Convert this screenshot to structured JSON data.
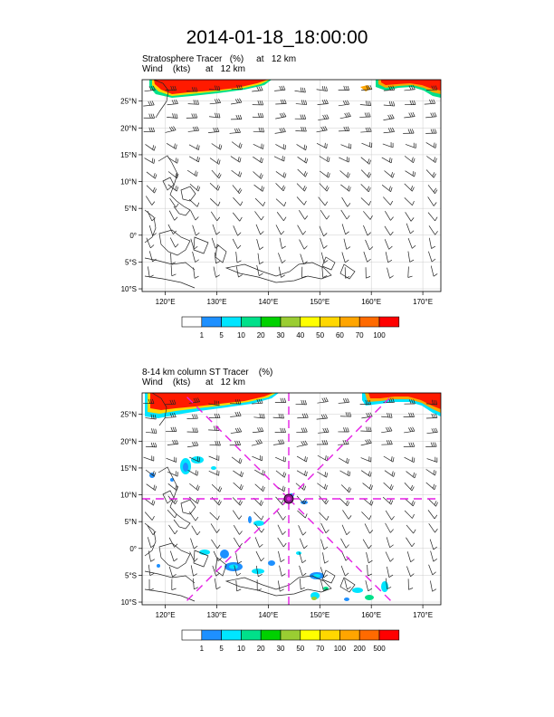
{
  "title": "2014-01-18_18:00:00",
  "panels": [
    {
      "line1": "Stratosphere Tracer   (%)     at   12 km",
      "line2": "Wind    (kts)      at   12 km",
      "lat_labels": [
        "25°N",
        "20°N",
        "15°N",
        "10°N",
        "5°N",
        "0°",
        "5°S",
        "10°S"
      ],
      "lon_labels": [
        "120°E",
        "130°E",
        "140°E",
        "150°E",
        "160°E",
        "170°E"
      ],
      "colorbar_labels": [
        "1",
        "5",
        "10",
        "20",
        "30",
        "40",
        "50",
        "60",
        "70",
        "100"
      ]
    },
    {
      "line1": "8-14 km column ST Tracer    (%)",
      "line2": "Wind    (kts)      at   12 km",
      "lat_labels": [
        "25°N",
        "20°N",
        "15°N",
        "10°N",
        "5°N",
        "0°",
        "5°S",
        "10°S"
      ],
      "lon_labels": [
        "120°E",
        "130°E",
        "140°E",
        "150°E",
        "160°E",
        "170°E"
      ],
      "colorbar_labels": [
        "1",
        "5",
        "10",
        "20",
        "30",
        "50",
        "70",
        "100",
        "200",
        "500"
      ]
    }
  ],
  "colorbar_colors": [
    "#ffffff",
    "#1e90ff",
    "#00e5ff",
    "#00e08a",
    "#00d100",
    "#9acd32",
    "#ffff00",
    "#ffd700",
    "#ffa500",
    "#ff6a00",
    "#ff0000"
  ],
  "colors": {
    "tracer_high": "#ff1a00",
    "marker": "#e51ee5",
    "coast": "#222222",
    "grid": "#cccccc"
  }
}
